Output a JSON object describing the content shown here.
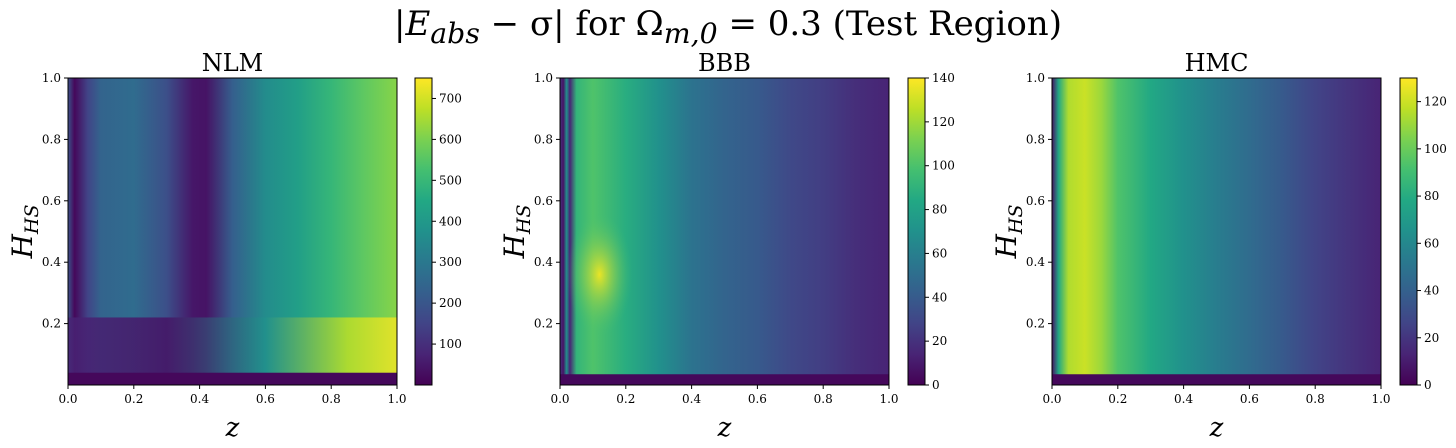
{
  "figure": {
    "title_prefix": "|E",
    "title_sub1": "abs",
    "title_mid": " − σ| for Ω",
    "title_sub2": "m,0",
    "title_suffix": " = 0.3 (Test Region)"
  },
  "chart_data": [
    {
      "type": "heatmap",
      "title": "NLM",
      "xlabel": "z",
      "ylabel_main": "H",
      "ylabel_sub": "HS",
      "xlim": [
        0.0,
        1.0
      ],
      "ylim": [
        0.0,
        1.0
      ],
      "xticks": [
        "0.0",
        "0.2",
        "0.4",
        "0.6",
        "0.8",
        "1.0"
      ],
      "yticks": [
        "0.2",
        "0.4",
        "0.6",
        "0.8",
        "1.0"
      ],
      "colorbar": {
        "min": 0,
        "max": 750,
        "ticks": [
          "100",
          "200",
          "300",
          "400",
          "500",
          "600",
          "700"
        ]
      },
      "colormap": "viridis"
    },
    {
      "type": "heatmap",
      "title": "BBB",
      "xlabel": "z",
      "ylabel_main": "H",
      "ylabel_sub": "HS",
      "xlim": [
        0.0,
        1.0
      ],
      "ylim": [
        0.0,
        1.0
      ],
      "xticks": [
        "0.0",
        "0.2",
        "0.4",
        "0.6",
        "0.8",
        "1.0"
      ],
      "yticks": [
        "0.2",
        "0.4",
        "0.6",
        "0.8",
        "1.0"
      ],
      "colorbar": {
        "min": 0,
        "max": 140,
        "ticks": [
          "0",
          "20",
          "40",
          "60",
          "80",
          "100",
          "120",
          "140"
        ]
      },
      "colormap": "viridis"
    },
    {
      "type": "heatmap",
      "title": "HMC",
      "xlabel": "z",
      "ylabel_main": "H",
      "ylabel_sub": "HS",
      "xlim": [
        0.0,
        1.0
      ],
      "ylim": [
        0.0,
        1.0
      ],
      "xticks": [
        "0.0",
        "0.2",
        "0.4",
        "0.6",
        "0.8",
        "1.0"
      ],
      "yticks": [
        "0.2",
        "0.4",
        "0.6",
        "0.8",
        "1.0"
      ],
      "colorbar": {
        "min": 0,
        "max": 130,
        "ticks": [
          "0",
          "20",
          "40",
          "60",
          "80",
          "100",
          "120"
        ]
      },
      "colormap": "viridis"
    }
  ]
}
